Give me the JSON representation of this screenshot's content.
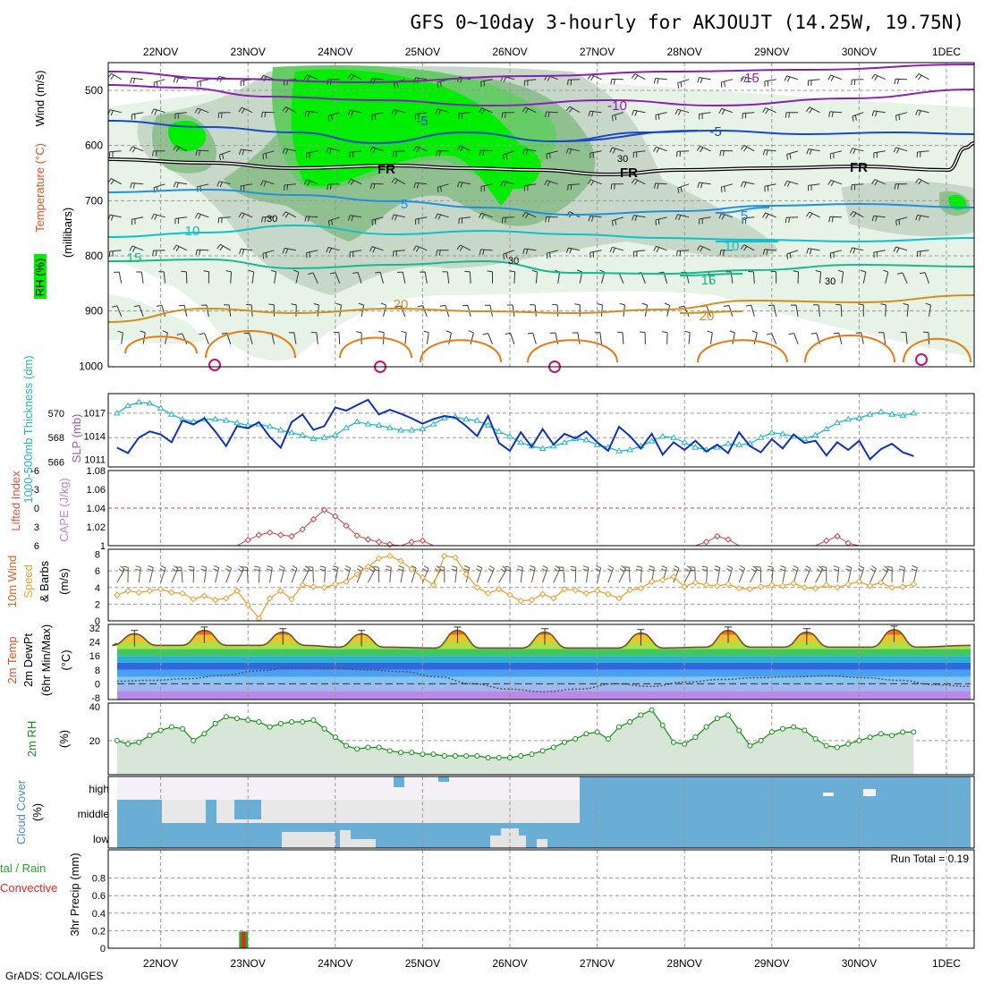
{
  "title": "GFS 0~10day 3-hourly for AKJOUJT (14.25W, 19.75N)",
  "credit": "GrADS: COLA/IGES",
  "colors": {
    "rh_light": "#e6f3e6",
    "rh_mid": "#c8d8c8",
    "rh_dark": "#90c090",
    "rh_green": "#66cc66",
    "rh_bright": "#00ee00",
    "thickness": "#20b8c8",
    "slp": "#1030c0",
    "li": "#d04040",
    "wind10": "#f0a030",
    "rh2m": "#109010",
    "rh2m_fill": "#9cc49c",
    "cloud": "#6aaed6",
    "cloud_gap": "#e8e8e8",
    "rain": "#22aa22",
    "conv": "#ee2222"
  },
  "chart_data": [
    {
      "type": "heatmap",
      "name": "upper",
      "x_dates": [
        "22NOV",
        "23NOV",
        "24NOV",
        "25NOV",
        "26NOV",
        "27NOV",
        "28NOV",
        "29NOV",
        "30NOV",
        "1DEC"
      ],
      "y_ticks": [
        "500",
        "600",
        "700",
        "800",
        "900",
        "1000"
      ],
      "ylabel_parts": [
        "RH (%)",
        "Temperature (°C)",
        "Wind (m/s)",
        "(millibars)"
      ],
      "ylim": [
        1000,
        450
      ],
      "temperature_labels": [
        "-15",
        "-10",
        "-5",
        "-5",
        "-5",
        "5",
        "5",
        "10",
        "10",
        "15",
        "15",
        "20",
        "20"
      ],
      "freezing_label": "FR",
      "rh_labels": [
        "30",
        "30",
        "30",
        "30"
      ]
    },
    {
      "type": "line",
      "name": "thickness_slp",
      "ylabel_left": "1000-500mb Thickness (dm)",
      "ylabel_right": "SLP (mb)",
      "left_ticks": [
        "566",
        "568",
        "570"
      ],
      "right_ticks": [
        "1011",
        "1014",
        "1017"
      ],
      "left_ylim": [
        565.6,
        571.6
      ],
      "right_ylim": [
        1010,
        1019.5
      ],
      "thickness": [
        570.0,
        570.6,
        570.9,
        570.8,
        570.4,
        569.9,
        569.5,
        569.3,
        569.5,
        569.5,
        569.4,
        569.2,
        569.0,
        569.1,
        568.9,
        568.6,
        568.4,
        568.2,
        567.9,
        568.0,
        568.2,
        568.8,
        569.3,
        569.1,
        569.0,
        568.8,
        568.6,
        568.6,
        568.7,
        569.1,
        569.6,
        569.7,
        569.5,
        569.4,
        569.0,
        568.5,
        568.1,
        567.6,
        567.3,
        567.1,
        567.3,
        567.6,
        567.9,
        567.8,
        567.4,
        567.2,
        566.9,
        567.0,
        567.3,
        567.7,
        568.1,
        568.0,
        567.6,
        567.2,
        567.0,
        567.2,
        567.5,
        567.4,
        567.5,
        568.0,
        568.4,
        568.3,
        568.1,
        567.9,
        568.2,
        568.7,
        569.2,
        569.5,
        569.6,
        569.9,
        570.1,
        569.9,
        569.8,
        570.0
      ],
      "slp": [
        1012.5,
        1011.8,
        1013.8,
        1014.6,
        1014.2,
        1013.2,
        1016.0,
        1015.5,
        1016.3,
        1014.6,
        1012.7,
        1015.3,
        1015.0,
        1015.8,
        1013.9,
        1012.5,
        1015.8,
        1016.8,
        1014.8,
        1015.3,
        1017.7,
        1017.3,
        1018.0,
        1018.7,
        1016.8,
        1017.4,
        1016.9,
        1016.3,
        1015.6,
        1016.2,
        1016.6,
        1016.4,
        1015.3,
        1014.0,
        1016.6,
        1013.1,
        1012.1,
        1014.5,
        1012.6,
        1014.9,
        1012.9,
        1014.3,
        1013.7,
        1014.6,
        1013.2,
        1012.1,
        1015.2,
        1014.0,
        1012.4,
        1014.3,
        1011.6,
        1013.2,
        1012.2,
        1013.4,
        1012.0,
        1012.9,
        1011.8,
        1014.5,
        1012.7,
        1011.9,
        1013.6,
        1012.4,
        1014.2,
        1013.1,
        1013.4,
        1011.5,
        1013.2,
        1012.2,
        1013.4,
        1011.0,
        1012.3,
        1013.0,
        1011.9,
        1011.4
      ]
    },
    {
      "type": "line",
      "name": "li_cape",
      "ylabel_left": "Lifted Index",
      "ylabel_right": "CAPE (J/kg)",
      "left_ticks": [
        "-6",
        "-3",
        "0",
        "3",
        "6"
      ],
      "right_ticks": [
        "1",
        "1.02",
        "1.04",
        "1.06",
        "1.08"
      ],
      "ylim": [
        6,
        -6
      ],
      "li": [
        6,
        6,
        6,
        6,
        6,
        6,
        6,
        6,
        6,
        6,
        6,
        6,
        5.1,
        4.3,
        3.9,
        4.3,
        4.5,
        3.4,
        1.8,
        0.3,
        1.3,
        2.8,
        4.4,
        5.0,
        5.4,
        5.8,
        6,
        5.4,
        5.2,
        6,
        6,
        6,
        6,
        6,
        6,
        6,
        6,
        6,
        6,
        6,
        6,
        6,
        6,
        6,
        6,
        6,
        6,
        6,
        6,
        6,
        6,
        6,
        6,
        6,
        5.4,
        4.5,
        5.0,
        6,
        6,
        6,
        6,
        6,
        6,
        6,
        6,
        5.2,
        4.5,
        5.6,
        6,
        6,
        6,
        6,
        6,
        6
      ]
    },
    {
      "type": "line",
      "name": "wind10m",
      "ylabel": "10m Wind Speed & Barbs (m/s)",
      "y_ticks": [
        "0",
        "2",
        "4",
        "6",
        "8"
      ],
      "ylim": [
        0,
        8.6
      ],
      "speed": [
        3.1,
        3.6,
        3.4,
        3.6,
        3.8,
        3.4,
        3.3,
        2.6,
        3.0,
        2.5,
        2.7,
        3.6,
        1.9,
        0.3,
        2.7,
        3.6,
        2.6,
        4.3,
        4.1,
        4.0,
        4.4,
        4.7,
        5.6,
        6.5,
        7.5,
        7.8,
        7.2,
        6.2,
        5.2,
        4.3,
        7.8,
        7.6,
        5.6,
        4.0,
        3.3,
        3.8,
        3.1,
        2.4,
        2.5,
        3.2,
        2.7,
        3.8,
        3.7,
        3.3,
        3.6,
        3.2,
        2.7,
        3.7,
        3.9,
        4.7,
        4.9,
        5.3,
        4.1,
        4.6,
        4.3,
        4.2,
        4.4,
        3.9,
        3.8,
        4.1,
        4.3,
        4.2,
        4.5,
        4.0,
        3.9,
        4.3,
        4.0,
        4.4,
        4.7,
        4.2,
        4.6,
        4.0,
        4.1,
        4.4
      ]
    },
    {
      "type": "area",
      "name": "temp2m",
      "ylabel": "2m Temp 2m DewPt (6hr Min/Max) (°C)",
      "y_ticks": [
        "-8",
        "0",
        "8",
        "16",
        "24",
        "32"
      ],
      "ylim": [
        -9,
        34
      ],
      "temp_peak_times": [
        0.7,
        1.5,
        2.4,
        3.3,
        4.4,
        5.4,
        6.5,
        7.5,
        8.4,
        9.4
      ],
      "temp_max": [
        28.5,
        30.5,
        29.5,
        28.5,
        30.5,
        29.5,
        29.0,
        30.5,
        29.5,
        31.0
      ],
      "temp_min": [
        22,
        22,
        22,
        21,
        20.5,
        20.5,
        20.5,
        21,
        21,
        21
      ],
      "dewpt": [
        1.5,
        2.0,
        3.0,
        5.0,
        7.5,
        9.5,
        9.0,
        8.0,
        7.0,
        4.0,
        0,
        -3,
        -4.5,
        -3,
        0,
        -1.5,
        1.0,
        2.5,
        3.5,
        4.0,
        4.5,
        3.5,
        2.0,
        -0.5,
        -1.5
      ]
    },
    {
      "type": "area",
      "name": "rh2m",
      "ylabel": "2m RH (%)",
      "y_ticks": [
        "20",
        "40"
      ],
      "ylim": [
        0,
        42
      ],
      "rh": [
        20,
        18,
        19,
        23,
        26,
        28,
        27,
        20,
        24,
        30,
        34,
        33,
        32,
        31,
        28,
        30,
        31,
        31,
        32,
        27,
        22,
        17,
        15,
        16,
        16,
        14,
        13,
        13,
        12,
        12,
        11,
        11,
        11,
        11,
        10,
        10,
        10,
        11,
        12,
        14,
        16,
        19,
        21,
        24,
        25,
        21,
        28,
        31,
        35,
        38,
        29,
        19,
        18,
        22,
        28,
        33,
        35,
        26,
        17,
        20,
        25,
        27,
        28,
        26,
        21,
        17,
        16,
        18,
        20,
        22,
        24,
        23,
        25,
        25
      ]
    },
    {
      "type": "heatmap",
      "name": "cloud",
      "ylabel": "Cloud Cover (%)",
      "layer_labels": [
        "high",
        "middle",
        "low"
      ]
    },
    {
      "type": "bar",
      "name": "precip",
      "ylabel_left": "Total / Rain Convective",
      "ylabel": "3hr Precip (mm)",
      "y_ticks": [
        "0",
        "0.2",
        "0.4",
        "0.6",
        "0.8"
      ],
      "ylim": [
        0,
        1
      ],
      "run_total": "Run Total = 0.19",
      "bar_time": 1.45,
      "bar_value": 0.19
    }
  ]
}
